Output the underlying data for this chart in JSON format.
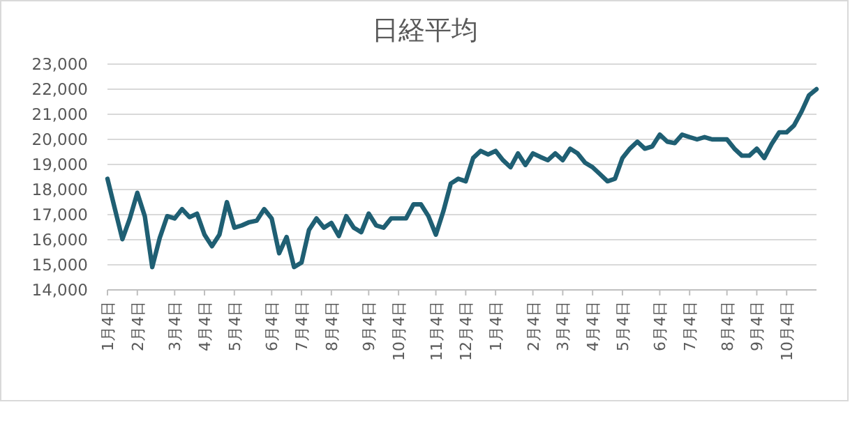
{
  "chart_data": {
    "type": "line",
    "title": "日経平均",
    "color": "#1f5f73",
    "grid": "y",
    "ylim": [
      14000,
      23000
    ],
    "yticks": [
      {
        "value": 14000,
        "label": "14,000"
      },
      {
        "value": 15000,
        "label": "15,000"
      },
      {
        "value": 16000,
        "label": "16,000"
      },
      {
        "value": 17000,
        "label": "17,000"
      },
      {
        "value": 18000,
        "label": "18,000"
      },
      {
        "value": 19000,
        "label": "19,000"
      },
      {
        "value": 20000,
        "label": "20,000"
      },
      {
        "value": 21000,
        "label": "21,000"
      },
      {
        "value": 22000,
        "label": "22,000"
      },
      {
        "value": 23000,
        "label": "23,000"
      }
    ],
    "categories": [
      "1月4日",
      null,
      null,
      null,
      "2月4日",
      null,
      null,
      null,
      null,
      "3月4日",
      null,
      null,
      null,
      "4月4日",
      null,
      null,
      null,
      "5月4日",
      null,
      null,
      null,
      null,
      "6月4日",
      null,
      null,
      null,
      "7月4日",
      null,
      null,
      null,
      "8月4日",
      null,
      null,
      null,
      null,
      "9月4日",
      null,
      null,
      null,
      "10月4日",
      null,
      null,
      null,
      null,
      "11月4日",
      null,
      null,
      null,
      "12月4日",
      null,
      null,
      null,
      "1月4日",
      null,
      null,
      null,
      null,
      "2月4日",
      null,
      null,
      null,
      "3月4日",
      null,
      null,
      null,
      "4月4日",
      null,
      null,
      null,
      "5月4日",
      null,
      null,
      null,
      null,
      "6月4日",
      null,
      null,
      null,
      "7月4日",
      null,
      null,
      null,
      null,
      "8月4日",
      null,
      null,
      null,
      "9月4日",
      null,
      null,
      null,
      "10月4日",
      null,
      null,
      null,
      null
    ],
    "values": [
      18430,
      17220,
      16020,
      16850,
      17870,
      16940,
      14910,
      16070,
      16940,
      16850,
      17220,
      16900,
      17040,
      16200,
      15740,
      16200,
      17500,
      16480,
      16570,
      16700,
      16760,
      17220,
      16850,
      15460,
      16110,
      14910,
      15090,
      16390,
      16850,
      16480,
      16670,
      16150,
      16940,
      16480,
      16300,
      17040,
      16570,
      16480,
      16850,
      16850,
      16850,
      17410,
      17410,
      16940,
      16200,
      17130,
      18240,
      18430,
      18330,
      19260,
      19540,
      19400,
      19540,
      19170,
      18890,
      19440,
      18980,
      19440,
      19300,
      19170,
      19440,
      19170,
      19630,
      19440,
      19070,
      18890,
      18610,
      18330,
      18430,
      19260,
      19630,
      19910,
      19630,
      19720,
      20190,
      19910,
      19850,
      20190,
      20090,
      20000,
      20090,
      20000,
      20000,
      20000,
      19630,
      19350,
      19350,
      19630,
      19260,
      19820,
      20280,
      20280,
      20560,
      21110,
      21760,
      22000
    ]
  }
}
